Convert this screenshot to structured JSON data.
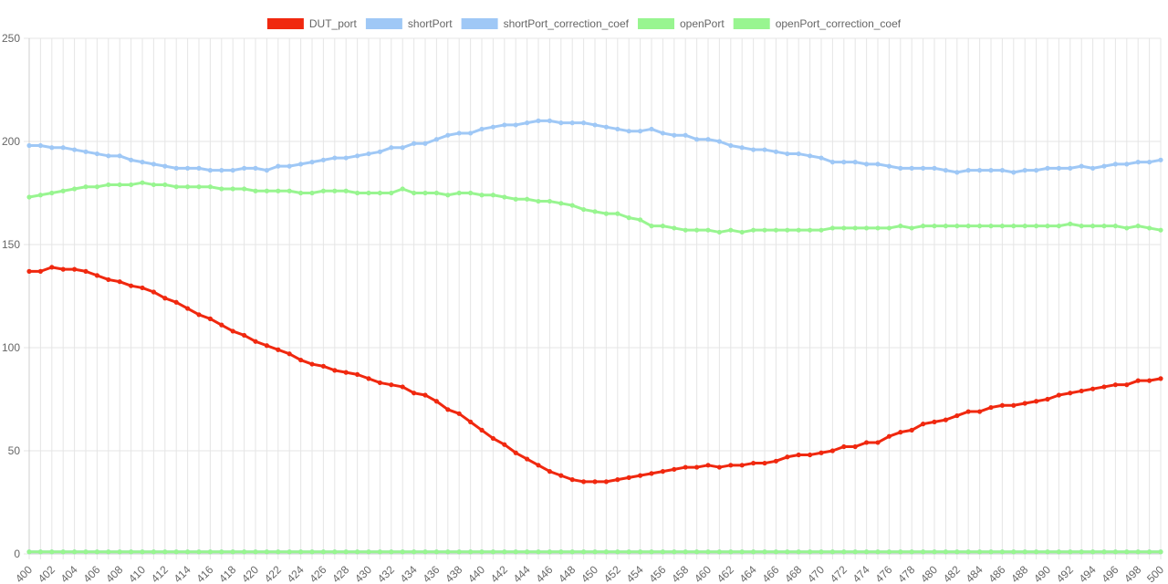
{
  "chart_data": {
    "type": "line",
    "title": "",
    "xlabel": "",
    "ylabel": "",
    "x": [
      400,
      401,
      402,
      403,
      404,
      405,
      406,
      407,
      408,
      409,
      410,
      411,
      412,
      413,
      414,
      415,
      416,
      417,
      418,
      419,
      420,
      421,
      422,
      423,
      424,
      425,
      426,
      427,
      428,
      429,
      430,
      431,
      432,
      433,
      434,
      435,
      436,
      437,
      438,
      439,
      440,
      441,
      442,
      443,
      444,
      445,
      446,
      447,
      448,
      449,
      450,
      451,
      452,
      453,
      454,
      455,
      456,
      457,
      458,
      459,
      460,
      461,
      462,
      463,
      464,
      465,
      466,
      467,
      468,
      469,
      470,
      471,
      472,
      473,
      474,
      475,
      476,
      477,
      478,
      479,
      480,
      481,
      482,
      483,
      484,
      485,
      486,
      487,
      488,
      489,
      490,
      491,
      492,
      493,
      494,
      495,
      496,
      497,
      498,
      499,
      500
    ],
    "x_tick_labels": [
      "400",
      "402",
      "404",
      "406",
      "408",
      "410",
      "412",
      "414",
      "416",
      "418",
      "420",
      "422",
      "424",
      "426",
      "428",
      "430",
      "432",
      "434",
      "436",
      "438",
      "440",
      "442",
      "444",
      "446",
      "448",
      "450",
      "452",
      "454",
      "456",
      "458",
      "460",
      "462",
      "464",
      "466",
      "468",
      "470",
      "472",
      "474",
      "476",
      "478",
      "480",
      "482",
      "484",
      "486",
      "488",
      "490",
      "492",
      "494",
      "496",
      "498",
      "500"
    ],
    "ylim": [
      0,
      250
    ],
    "y_ticks": [
      0,
      50,
      100,
      150,
      200,
      250
    ],
    "grid": true,
    "legend_position": "top-center",
    "series": [
      {
        "name": "DUT_port",
        "color": "#f0280f",
        "values": [
          137,
          137,
          139,
          138,
          138,
          137,
          135,
          133,
          132,
          130,
          129,
          127,
          124,
          122,
          119,
          116,
          114,
          111,
          108,
          106,
          103,
          101,
          99,
          97,
          94,
          92,
          91,
          89,
          88,
          87,
          85,
          83,
          82,
          81,
          78,
          77,
          74,
          70,
          68,
          64,
          60,
          56,
          53,
          49,
          46,
          43,
          40,
          38,
          36,
          35,
          35,
          35,
          36,
          37,
          38,
          39,
          40,
          41,
          42,
          42,
          43,
          42,
          43,
          43,
          44,
          44,
          45,
          47,
          48,
          48,
          49,
          50,
          52,
          52,
          54,
          54,
          57,
          59,
          60,
          63,
          64,
          65,
          67,
          69,
          69,
          71,
          72,
          72,
          73,
          74,
          75,
          77,
          78,
          79,
          80,
          81,
          82,
          82,
          84,
          84,
          85
        ]
      },
      {
        "name": "shortPort",
        "color": "#9fc8f6",
        "values": [
          198,
          198,
          197,
          197,
          196,
          195,
          194,
          193,
          193,
          191,
          190,
          189,
          188,
          187,
          187,
          187,
          186,
          186,
          186,
          187,
          187,
          186,
          188,
          188,
          189,
          190,
          191,
          192,
          192,
          193,
          194,
          195,
          197,
          197,
          199,
          199,
          201,
          203,
          204,
          204,
          206,
          207,
          208,
          208,
          209,
          210,
          210,
          209,
          209,
          209,
          208,
          207,
          206,
          205,
          205,
          206,
          204,
          203,
          203,
          201,
          201,
          200,
          198,
          197,
          196,
          196,
          195,
          194,
          194,
          193,
          192,
          190,
          190,
          190,
          189,
          189,
          188,
          187,
          187,
          187,
          187,
          186,
          185,
          186,
          186,
          186,
          186,
          185,
          186,
          186,
          187,
          187,
          187,
          188,
          187,
          188,
          189,
          189,
          190,
          190,
          191
        ]
      },
      {
        "name": "shortPort_correction_coef",
        "color": "#9fc8f6",
        "values": [
          1,
          1,
          1,
          1,
          1,
          1,
          1,
          1,
          1,
          1,
          1,
          1,
          1,
          1,
          1,
          1,
          1,
          1,
          1,
          1,
          1,
          1,
          1,
          1,
          1,
          1,
          1,
          1,
          1,
          1,
          1,
          1,
          1,
          1,
          1,
          1,
          1,
          1,
          1,
          1,
          1,
          1,
          1,
          1,
          1,
          1,
          1,
          1,
          1,
          1,
          1,
          1,
          1,
          1,
          1,
          1,
          1,
          1,
          1,
          1,
          1,
          1,
          1,
          1,
          1,
          1,
          1,
          1,
          1,
          1,
          1,
          1,
          1,
          1,
          1,
          1,
          1,
          1,
          1,
          1,
          1,
          1,
          1,
          1,
          1,
          1,
          1,
          1,
          1,
          1,
          1,
          1,
          1,
          1,
          1,
          1,
          1,
          1,
          1,
          1,
          1
        ]
      },
      {
        "name": "openPort",
        "color": "#98f590",
        "values": [
          173,
          174,
          175,
          176,
          177,
          178,
          178,
          179,
          179,
          179,
          180,
          179,
          179,
          178,
          178,
          178,
          178,
          177,
          177,
          177,
          176,
          176,
          176,
          176,
          175,
          175,
          176,
          176,
          176,
          175,
          175,
          175,
          175,
          177,
          175,
          175,
          175,
          174,
          175,
          175,
          174,
          174,
          173,
          172,
          172,
          171,
          171,
          170,
          169,
          167,
          166,
          165,
          165,
          163,
          162,
          159,
          159,
          158,
          157,
          157,
          157,
          156,
          157,
          156,
          157,
          157,
          157,
          157,
          157,
          157,
          157,
          158,
          158,
          158,
          158,
          158,
          158,
          159,
          158,
          159,
          159,
          159,
          159,
          159,
          159,
          159,
          159,
          159,
          159,
          159,
          159,
          159,
          160,
          159,
          159,
          159,
          159,
          158,
          159,
          158,
          157
        ]
      },
      {
        "name": "openPort_correction_coef",
        "color": "#98f590",
        "values": [
          1,
          1,
          1,
          1,
          1,
          1,
          1,
          1,
          1,
          1,
          1,
          1,
          1,
          1,
          1,
          1,
          1,
          1,
          1,
          1,
          1,
          1,
          1,
          1,
          1,
          1,
          1,
          1,
          1,
          1,
          1,
          1,
          1,
          1,
          1,
          1,
          1,
          1,
          1,
          1,
          1,
          1,
          1,
          1,
          1,
          1,
          1,
          1,
          1,
          1,
          1,
          1,
          1,
          1,
          1,
          1,
          1,
          1,
          1,
          1,
          1,
          1,
          1,
          1,
          1,
          1,
          1,
          1,
          1,
          1,
          1,
          1,
          1,
          1,
          1,
          1,
          1,
          1,
          1,
          1,
          1,
          1,
          1,
          1,
          1,
          1,
          1,
          1,
          1,
          1,
          1,
          1,
          1,
          1,
          1,
          1,
          1,
          1,
          1,
          1,
          1
        ]
      }
    ]
  }
}
